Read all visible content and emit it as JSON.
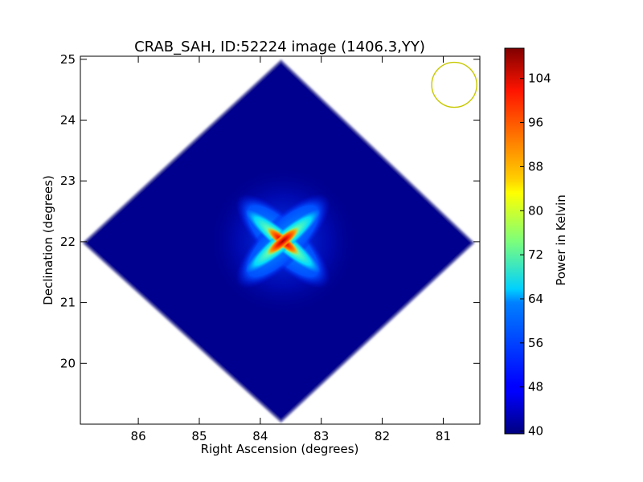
{
  "chart_data": {
    "type": "heatmap",
    "title": "CRAB_SAH, ID:52224 image (1406.3,YY)",
    "xlabel": "Right Ascension (degrees)",
    "ylabel": "Declination (degrees)",
    "colorbar_label": "Power in Kelvin",
    "colormap": "jet",
    "xlim": [
      86.95,
      80.4
    ],
    "ylim": [
      19.0,
      25.05
    ],
    "x_ticks": [
      86,
      85,
      84,
      83,
      82,
      81
    ],
    "x_tick_labels": [
      "86",
      "85",
      "84",
      "83",
      "82",
      "81"
    ],
    "y_ticks": [
      20,
      21,
      22,
      23,
      24,
      25
    ],
    "y_tick_labels": [
      "20",
      "21",
      "22",
      "23",
      "24",
      "25"
    ],
    "colorbar_range": [
      39.5,
      109.5
    ],
    "colorbar_ticks": [
      40,
      48,
      56,
      64,
      72,
      80,
      88,
      96,
      104
    ],
    "colorbar_tick_labels": [
      "40",
      "48",
      "56",
      "64",
      "72",
      "80",
      "88",
      "96",
      "104"
    ],
    "background_level": 40,
    "source": {
      "ra": 83.63,
      "dec": 22.01,
      "peak": 108
    },
    "beam_marker": {
      "ra": 80.82,
      "dec": 24.58,
      "color": "#c8c800"
    },
    "footprint_corners_deg": [
      [
        83.66,
        24.98
      ],
      [
        86.9,
        21.98
      ],
      [
        83.66,
        19.04
      ],
      [
        80.5,
        21.98
      ]
    ],
    "grid": false
  }
}
